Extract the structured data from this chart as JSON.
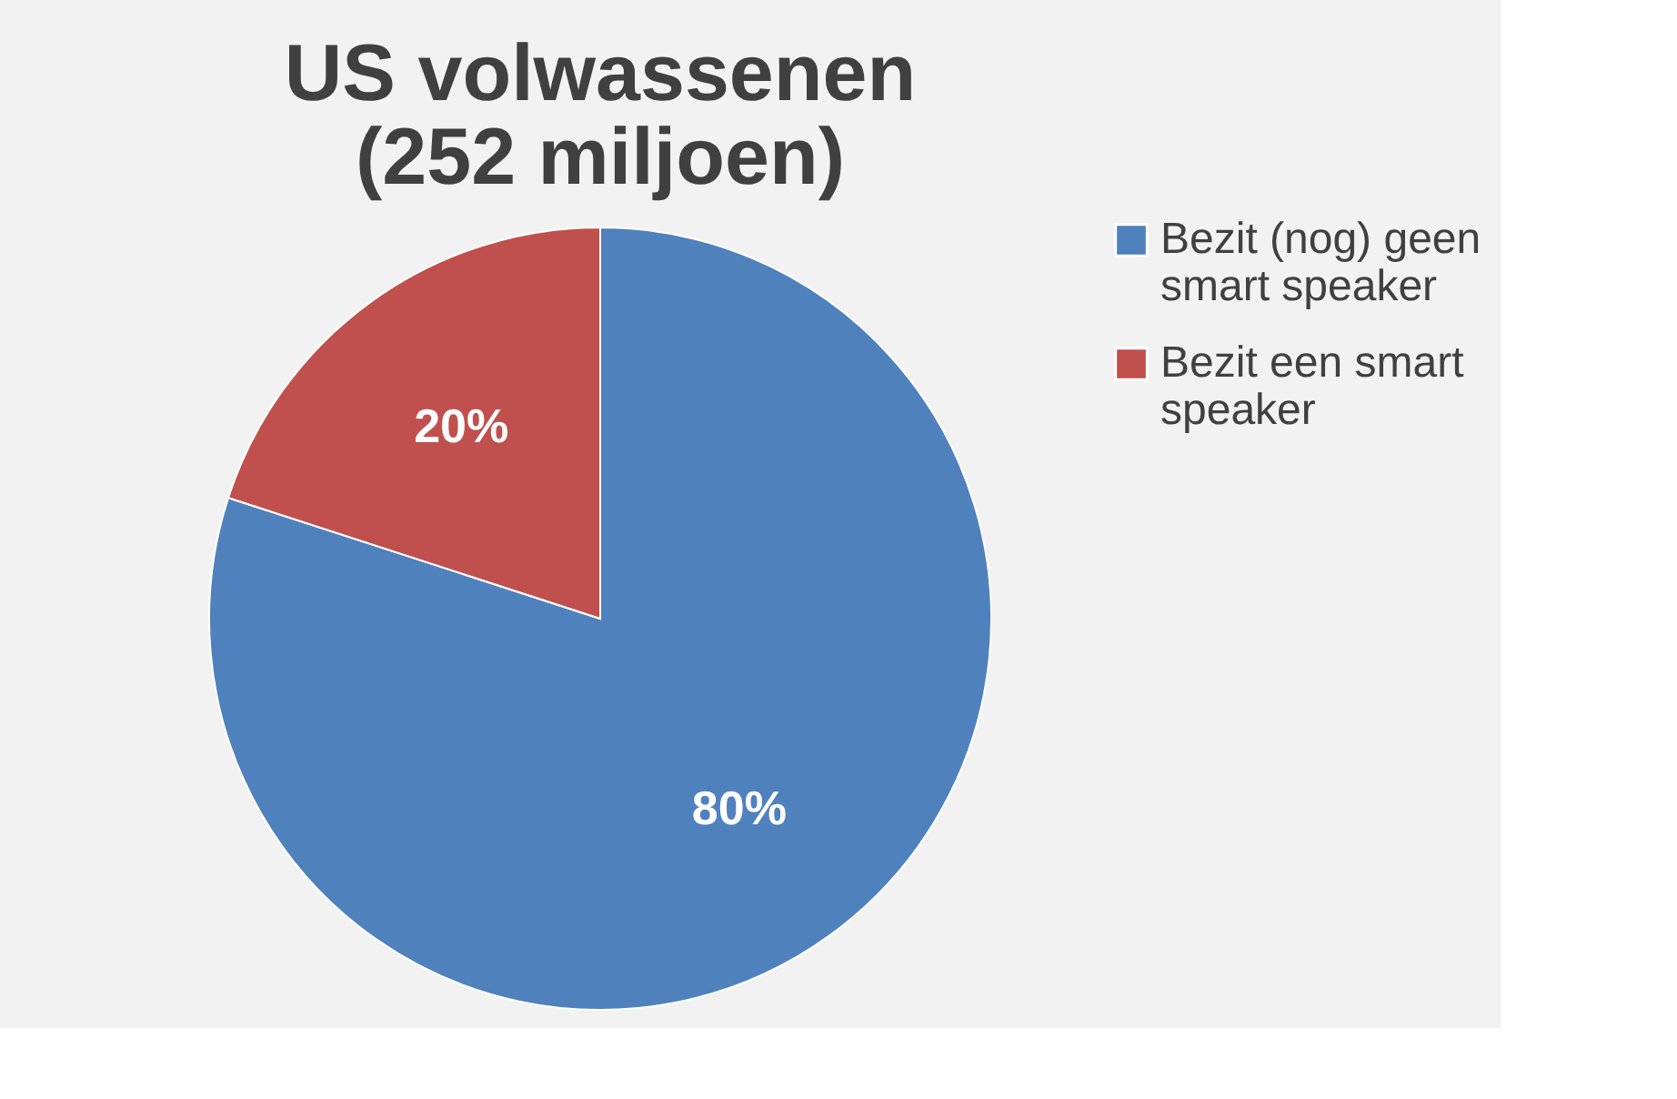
{
  "chart_data": {
    "type": "pie",
    "title": "US volwassenen (252 miljoen)",
    "categories": [
      "Bezit (nog) geen smart speaker",
      "Bezit een smart speaker"
    ],
    "values": [
      80,
      20
    ],
    "colors": [
      "#4f81bd",
      "#c0504d"
    ],
    "value_labels": [
      "80%",
      "20%"
    ],
    "legend": "right"
  }
}
